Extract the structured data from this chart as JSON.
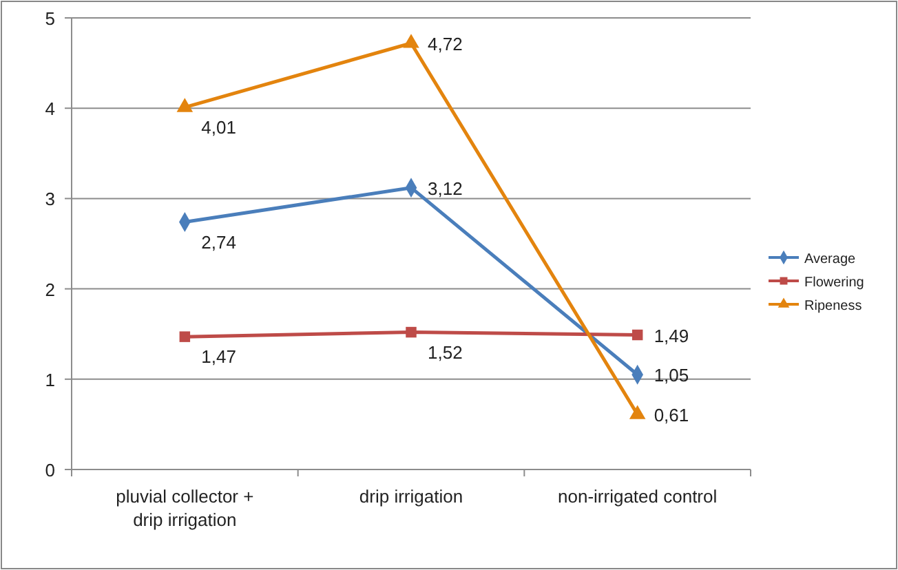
{
  "chart_data": {
    "type": "line",
    "categories": [
      "pluvial collector + drip irrigation",
      "drip irrigation",
      "non-irrigated control"
    ],
    "series": [
      {
        "name": "Average",
        "color": "#4a7ebb",
        "marker": "diamond",
        "values": [
          2.74,
          3.12,
          1.05
        ],
        "value_labels": [
          "2,74",
          "3,12",
          "1,05"
        ]
      },
      {
        "name": "Flowering",
        "color": "#be4b48",
        "marker": "square",
        "values": [
          1.47,
          1.52,
          1.49
        ],
        "value_labels": [
          "1,47",
          "1,52",
          "1,49"
        ]
      },
      {
        "name": "Ripeness",
        "color": "#e3840e",
        "marker": "triangle",
        "values": [
          4.01,
          4.72,
          0.61
        ],
        "value_labels": [
          "4,01",
          "4,72",
          "0,61"
        ]
      }
    ],
    "ylim": [
      0,
      5
    ],
    "yticks": [
      0,
      1,
      2,
      3,
      4,
      5
    ],
    "grid": "y",
    "legend": "right"
  }
}
